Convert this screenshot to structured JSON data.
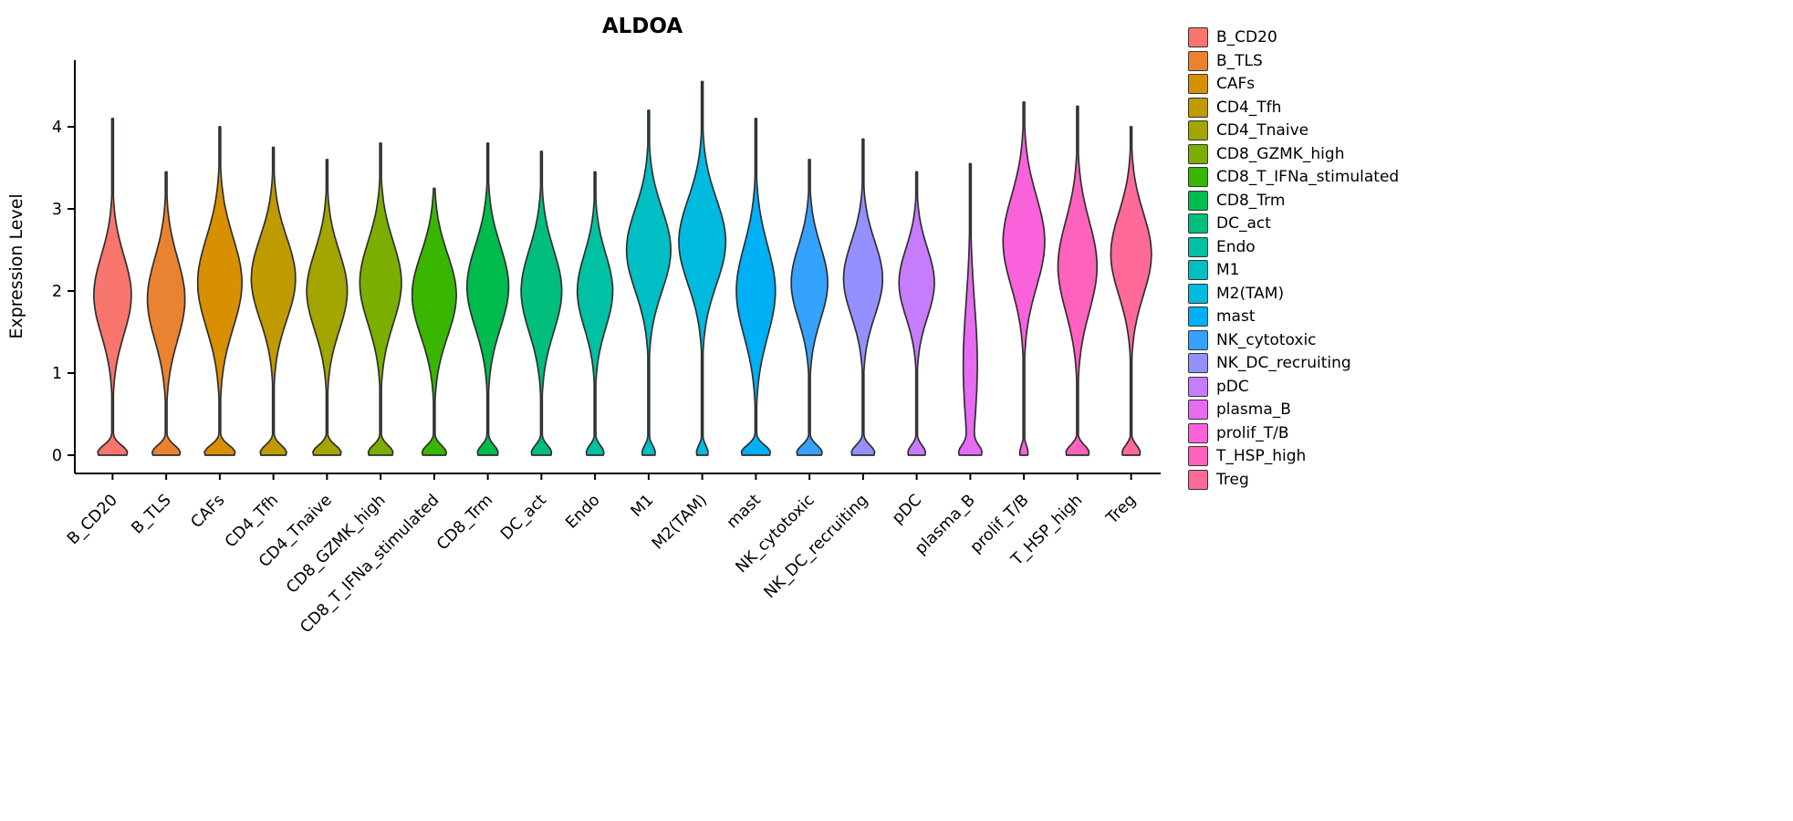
{
  "chart_data": {
    "type": "violin",
    "title": "ALDOA",
    "xlabel": "",
    "ylabel": "Expression Level",
    "ylim": [
      0,
      4.8
    ],
    "yticks": [
      0,
      1,
      2,
      3,
      4
    ],
    "grid": false,
    "legend_position": "right",
    "outline_color": "#2f2f2f",
    "axis_color": "#000000",
    "categories": [
      "B_CD20",
      "B_TLS",
      "CAFs",
      "CD4_Tfh",
      "CD4_Tnaive",
      "CD8_GZMK_high",
      "CD8_T_IFNa_stimulated",
      "CD8_Trm",
      "DC_act",
      "Endo",
      "M1",
      "M2(TAM)",
      "mast",
      "NK_cytotoxic",
      "NK_DC_recruiting",
      "pDC",
      "plasma_B",
      "prolif_T/B",
      "T_HSP_high",
      "Treg"
    ],
    "series": [
      {
        "name": "B_CD20",
        "color": "#F8766D",
        "max_expression": 4.1,
        "density_peak": 1.95,
        "density_spread": 0.48,
        "zero_fraction_bulge": 0.8,
        "relative_width": 0.72
      },
      {
        "name": "B_TLS",
        "color": "#EA8331",
        "max_expression": 3.45,
        "density_peak": 1.9,
        "density_spread": 0.5,
        "zero_fraction_bulge": 0.75,
        "relative_width": 0.72
      },
      {
        "name": "CAFs",
        "color": "#D89000",
        "max_expression": 4.0,
        "density_peak": 2.1,
        "density_spread": 0.55,
        "zero_fraction_bulge": 0.7,
        "relative_width": 0.85
      },
      {
        "name": "CD4_Tfh",
        "color": "#C09B00",
        "max_expression": 3.75,
        "density_peak": 2.15,
        "density_spread": 0.5,
        "zero_fraction_bulge": 0.6,
        "relative_width": 0.85
      },
      {
        "name": "CD4_Tnaive",
        "color": "#A3A500",
        "max_expression": 3.6,
        "density_peak": 2.0,
        "density_spread": 0.48,
        "zero_fraction_bulge": 0.7,
        "relative_width": 0.78
      },
      {
        "name": "CD8_GZMK_high",
        "color": "#7CAE00",
        "max_expression": 3.8,
        "density_peak": 2.1,
        "density_spread": 0.5,
        "zero_fraction_bulge": 0.6,
        "relative_width": 0.8
      },
      {
        "name": "CD8_T_IFNa_stimulated",
        "color": "#39B600",
        "max_expression": 3.25,
        "density_peak": 1.95,
        "density_spread": 0.5,
        "zero_fraction_bulge": 0.55,
        "relative_width": 0.85
      },
      {
        "name": "CD8_Trm",
        "color": "#00BB4E",
        "max_expression": 3.8,
        "density_peak": 2.05,
        "density_spread": 0.5,
        "zero_fraction_bulge": 0.5,
        "relative_width": 0.8
      },
      {
        "name": "DC_act",
        "color": "#00BF7D",
        "max_expression": 3.7,
        "density_peak": 2.0,
        "density_spread": 0.5,
        "zero_fraction_bulge": 0.5,
        "relative_width": 0.78
      },
      {
        "name": "Endo",
        "color": "#00C1A3",
        "max_expression": 3.45,
        "density_peak": 2.0,
        "density_spread": 0.45,
        "zero_fraction_bulge": 0.5,
        "relative_width": 0.68
      },
      {
        "name": "M1",
        "color": "#00BFC4",
        "max_expression": 4.2,
        "density_peak": 2.5,
        "density_spread": 0.5,
        "zero_fraction_bulge": 0.3,
        "relative_width": 0.85
      },
      {
        "name": "M2(TAM)",
        "color": "#00BAE0",
        "max_expression": 4.55,
        "density_peak": 2.6,
        "density_spread": 0.52,
        "zero_fraction_bulge": 0.25,
        "relative_width": 0.9
      },
      {
        "name": "mast",
        "color": "#00B0F6",
        "max_expression": 4.1,
        "density_peak": 2.0,
        "density_spread": 0.55,
        "zero_fraction_bulge": 0.75,
        "relative_width": 0.75
      },
      {
        "name": "NK_cytotoxic",
        "color": "#35A2FF",
        "max_expression": 3.6,
        "density_peak": 2.1,
        "density_spread": 0.45,
        "zero_fraction_bulge": 0.7,
        "relative_width": 0.7
      },
      {
        "name": "NK_DC_recruiting",
        "color": "#9590FF",
        "max_expression": 3.85,
        "density_peak": 2.15,
        "density_spread": 0.45,
        "zero_fraction_bulge": 0.6,
        "relative_width": 0.75
      },
      {
        "name": "pDC",
        "color": "#C77CFF",
        "max_expression": 3.45,
        "density_peak": 2.1,
        "density_spread": 0.42,
        "zero_fraction_bulge": 0.5,
        "relative_width": 0.68
      },
      {
        "name": "plasma_B",
        "color": "#E76BF3",
        "max_expression": 3.55,
        "density_peak": 1.1,
        "density_spread": 0.75,
        "zero_fraction_bulge": 1.3,
        "relative_width": 0.45
      },
      {
        "name": "prolif_T/B",
        "color": "#FA62DB",
        "max_expression": 4.3,
        "density_peak": 2.6,
        "density_spread": 0.55,
        "zero_fraction_bulge": 0.2,
        "relative_width": 0.8
      },
      {
        "name": "T_HSP_high",
        "color": "#FF62BC",
        "max_expression": 4.25,
        "density_peak": 2.3,
        "density_spread": 0.55,
        "zero_fraction_bulge": 0.6,
        "relative_width": 0.75
      },
      {
        "name": "Treg",
        "color": "#FF6A98",
        "max_expression": 4.0,
        "density_peak": 2.45,
        "density_spread": 0.5,
        "zero_fraction_bulge": 0.45,
        "relative_width": 0.78
      }
    ]
  }
}
